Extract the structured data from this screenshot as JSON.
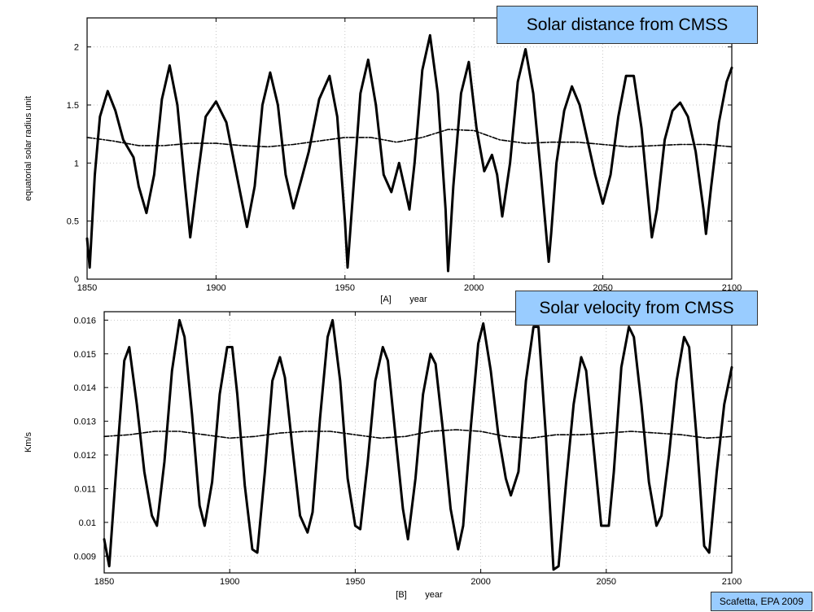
{
  "credit": "Scafetta, EPA 2009",
  "chart_data": [
    {
      "type": "line",
      "title": "Solar distance from CMSS",
      "panel_label": "[A]",
      "xlabel": "year",
      "ylabel": "equatorial solar radius unit",
      "xlim": [
        1850,
        2100
      ],
      "ylim": [
        0,
        2.25
      ],
      "xticks": [
        1850,
        1900,
        1950,
        2000,
        2050,
        2100
      ],
      "yticks": [
        0,
        0.5,
        1,
        1.5,
        2
      ],
      "ytick_labels": [
        "0",
        "0.5",
        "1",
        "1.5",
        "2"
      ],
      "grid": true,
      "series": [
        {
          "style": "solid",
          "x": [
            1850,
            1851,
            1853,
            1855,
            1858,
            1861,
            1864,
            1868,
            1870,
            1873,
            1876,
            1879,
            1882,
            1885,
            1888,
            1890,
            1893,
            1896,
            1900,
            1904,
            1908,
            1912,
            1915,
            1918,
            1921,
            1924,
            1927,
            1930,
            1933,
            1936,
            1940,
            1944,
            1947,
            1950,
            1951,
            1953,
            1956,
            1959,
            1962,
            1965,
            1968,
            1971,
            1973,
            1975,
            1977,
            1980,
            1983,
            1986,
            1989,
            1990,
            1992,
            1995,
            1998,
            2001,
            2004,
            2007,
            2009,
            2011,
            2014,
            2017,
            2020,
            2023,
            2026,
            2029,
            2030,
            2032,
            2035,
            2038,
            2041,
            2044,
            2047,
            2050,
            2053,
            2056,
            2059,
            2062,
            2065,
            2068,
            2069,
            2071,
            2074,
            2077,
            2080,
            2083,
            2086,
            2089,
            2090,
            2092,
            2095,
            2098,
            2100
          ],
          "y": [
            0.35,
            0.1,
            0.9,
            1.4,
            1.62,
            1.45,
            1.2,
            1.05,
            0.8,
            0.57,
            0.9,
            1.55,
            1.84,
            1.5,
            0.8,
            0.36,
            0.9,
            1.4,
            1.53,
            1.35,
            0.9,
            0.45,
            0.8,
            1.5,
            1.78,
            1.5,
            0.9,
            0.61,
            0.85,
            1.1,
            1.55,
            1.75,
            1.4,
            0.5,
            0.1,
            0.7,
            1.6,
            1.89,
            1.5,
            0.9,
            0.75,
            1.0,
            0.8,
            0.6,
            1.0,
            1.8,
            2.1,
            1.6,
            0.6,
            0.07,
            0.8,
            1.6,
            1.87,
            1.3,
            0.93,
            1.07,
            0.9,
            0.54,
            1.0,
            1.7,
            1.98,
            1.6,
            0.9,
            0.15,
            0.4,
            1.0,
            1.45,
            1.66,
            1.5,
            1.2,
            0.9,
            0.65,
            0.9,
            1.4,
            1.75,
            1.75,
            1.3,
            0.6,
            0.36,
            0.6,
            1.2,
            1.45,
            1.52,
            1.4,
            1.1,
            0.6,
            0.39,
            0.8,
            1.35,
            1.7,
            1.82
          ]
        },
        {
          "style": "dashed",
          "x": [
            1850,
            1860,
            1870,
            1880,
            1890,
            1900,
            1910,
            1920,
            1930,
            1940,
            1950,
            1960,
            1970,
            1980,
            1990,
            2000,
            2010,
            2020,
            2030,
            2040,
            2050,
            2060,
            2070,
            2080,
            2090,
            2100
          ],
          "y": [
            1.22,
            1.19,
            1.15,
            1.15,
            1.17,
            1.17,
            1.15,
            1.14,
            1.16,
            1.19,
            1.22,
            1.22,
            1.18,
            1.22,
            1.29,
            1.28,
            1.2,
            1.17,
            1.18,
            1.18,
            1.16,
            1.14,
            1.15,
            1.16,
            1.16,
            1.14
          ]
        }
      ]
    },
    {
      "type": "line",
      "title": "Solar velocity from CMSS",
      "panel_label": "[B]",
      "xlabel": "year",
      "ylabel": "Km/s",
      "xlim": [
        1850,
        2100
      ],
      "ylim": [
        0.0085,
        0.01625
      ],
      "xticks": [
        1850,
        1900,
        1950,
        2000,
        2050,
        2100
      ],
      "yticks": [
        0.009,
        0.01,
        0.011,
        0.012,
        0.013,
        0.014,
        0.015,
        0.016
      ],
      "ytick_labels": [
        "0.009",
        "0.01",
        "0.011",
        "0.012",
        "0.013",
        "0.014",
        "0.015",
        "0.016"
      ],
      "grid": true,
      "series": [
        {
          "style": "solid",
          "x": [
            1850,
            1852,
            1855,
            1858,
            1860,
            1863,
            1866,
            1869,
            1871,
            1874,
            1877,
            1880,
            1882,
            1885,
            1888,
            1890,
            1893,
            1896,
            1899,
            1901,
            1903,
            1906,
            1909,
            1911,
            1914,
            1917,
            1920,
            1922,
            1925,
            1928,
            1931,
            1933,
            1936,
            1939,
            1941,
            1944,
            1947,
            1950,
            1952,
            1955,
            1958,
            1961,
            1963,
            1966,
            1969,
            1971,
            1974,
            1977,
            1980,
            1982,
            1985,
            1988,
            1991,
            1993,
            1996,
            1999,
            2001,
            2004,
            2007,
            2010,
            2012,
            2015,
            2018,
            2021,
            2023,
            2026,
            2029,
            2031,
            2034,
            2037,
            2040,
            2042,
            2045,
            2048,
            2051,
            2053,
            2056,
            2059,
            2061,
            2064,
            2067,
            2070,
            2072,
            2075,
            2078,
            2081,
            2083,
            2086,
            2089,
            2091,
            2094,
            2097,
            2100
          ],
          "y": [
            0.0095,
            0.0087,
            0.0118,
            0.0148,
            0.0152,
            0.0135,
            0.0115,
            0.0102,
            0.0099,
            0.0118,
            0.0145,
            0.016,
            0.0155,
            0.0132,
            0.0105,
            0.0099,
            0.0112,
            0.0138,
            0.0152,
            0.0152,
            0.0138,
            0.0111,
            0.0092,
            0.0091,
            0.0115,
            0.0142,
            0.0149,
            0.0143,
            0.0122,
            0.0102,
            0.0097,
            0.0103,
            0.0131,
            0.0155,
            0.016,
            0.0142,
            0.0113,
            0.0099,
            0.0098,
            0.0118,
            0.0142,
            0.0152,
            0.0148,
            0.0126,
            0.0104,
            0.0095,
            0.0113,
            0.0138,
            0.015,
            0.0147,
            0.0127,
            0.0104,
            0.0092,
            0.0099,
            0.0128,
            0.0153,
            0.0159,
            0.0145,
            0.0126,
            0.0113,
            0.0108,
            0.0115,
            0.0142,
            0.0158,
            0.0158,
            0.0125,
            0.0086,
            0.0087,
            0.0112,
            0.0135,
            0.0149,
            0.0145,
            0.0122,
            0.0099,
            0.0099,
            0.0115,
            0.0146,
            0.0158,
            0.0155,
            0.0135,
            0.0112,
            0.0099,
            0.0102,
            0.012,
            0.0142,
            0.0155,
            0.0152,
            0.0125,
            0.0093,
            0.0091,
            0.0115,
            0.0135,
            0.0146
          ]
        },
        {
          "style": "dashed",
          "x": [
            1850,
            1860,
            1870,
            1880,
            1890,
            1900,
            1910,
            1920,
            1930,
            1940,
            1950,
            1960,
            1970,
            1980,
            1990,
            2000,
            2010,
            2020,
            2030,
            2040,
            2050,
            2060,
            2070,
            2080,
            2090,
            2100
          ],
          "y": [
            0.01255,
            0.0126,
            0.0127,
            0.0127,
            0.0126,
            0.0125,
            0.01255,
            0.01265,
            0.0127,
            0.0127,
            0.0126,
            0.0125,
            0.01255,
            0.0127,
            0.01275,
            0.0127,
            0.01255,
            0.0125,
            0.0126,
            0.0126,
            0.01265,
            0.0127,
            0.01265,
            0.0126,
            0.0125,
            0.01255
          ]
        }
      ]
    }
  ]
}
